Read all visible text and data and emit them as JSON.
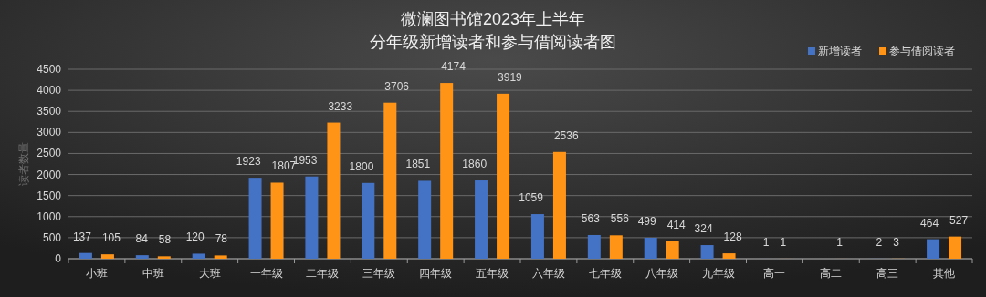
{
  "chart_data": {
    "type": "bar",
    "title": "微澜图书馆2023年上半年",
    "subtitle": "分年级新增读者和参与借阅读者图",
    "ylabel": "读者数量",
    "categories": [
      "小班",
      "中班",
      "大班",
      "一年级",
      "二年级",
      "三年级",
      "四年级",
      "五年级",
      "六年级",
      "七年级",
      "八年级",
      "九年级",
      "高一",
      "高二",
      "高三",
      "其他"
    ],
    "series": [
      {
        "name": "新增读者",
        "color": "#4472c4",
        "values": [
          137,
          84,
          120,
          1923,
          1953,
          1800,
          1851,
          1860,
          1059,
          563,
          499,
          324,
          1,
          null,
          2,
          464
        ]
      },
      {
        "name": "参与借阅读者",
        "color": "#ff9417",
        "values": [
          105,
          58,
          78,
          1807,
          3233,
          3706,
          4174,
          3919,
          2536,
          556,
          414,
          128,
          1,
          1,
          3,
          527
        ]
      }
    ],
    "ylim": [
      0,
      4500
    ],
    "yticks": [
      0,
      500,
      1000,
      1500,
      2000,
      2500,
      3000,
      3500,
      4000,
      4500
    ],
    "grid": "y",
    "legend": "top right",
    "data_labels": true
  }
}
